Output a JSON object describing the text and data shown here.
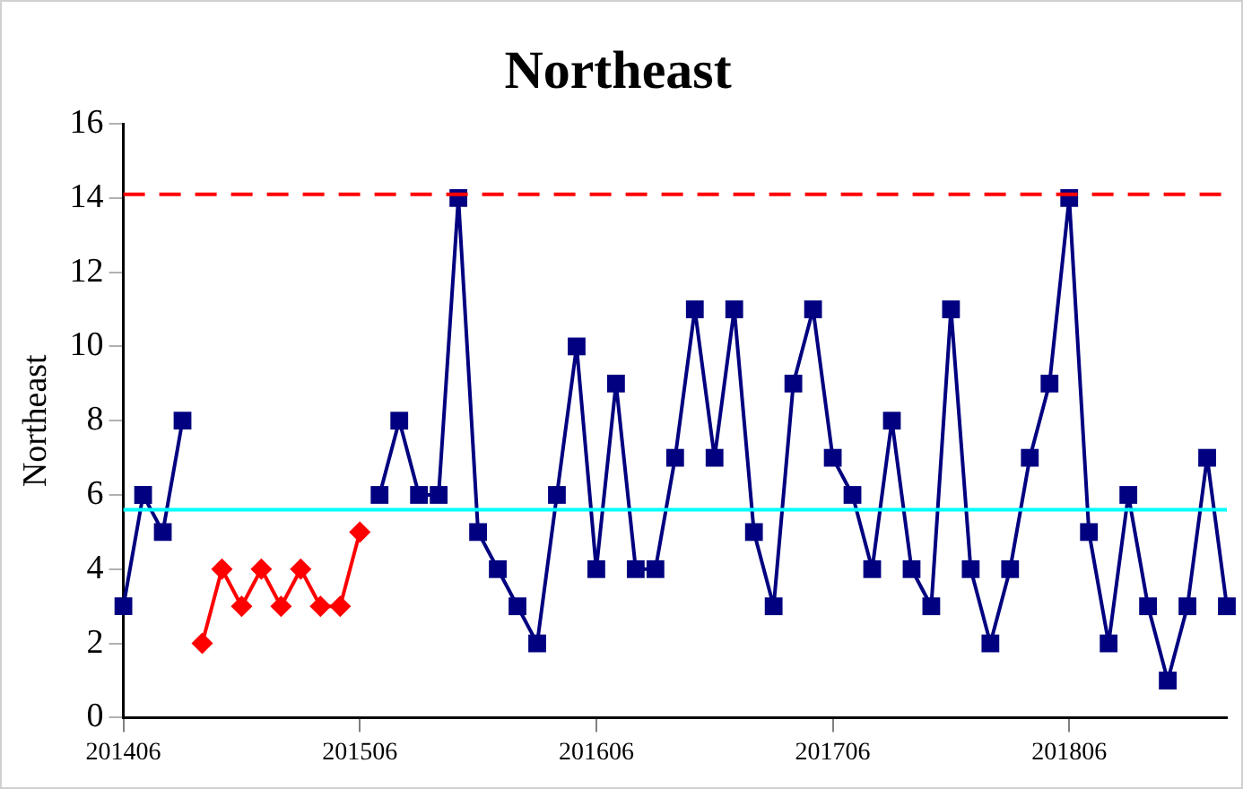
{
  "chart_data": {
    "type": "line",
    "title": "Northeast",
    "ylabel": "Northeast",
    "categories": [
      "201406",
      null,
      null,
      null,
      null,
      null,
      null,
      null,
      null,
      null,
      null,
      null,
      "201506",
      null,
      null,
      null,
      null,
      null,
      null,
      null,
      null,
      null,
      null,
      null,
      "201606",
      null,
      null,
      null,
      null,
      null,
      null,
      null,
      null,
      null,
      null,
      null,
      "201706",
      null,
      null,
      null,
      null,
      null,
      null,
      null,
      null,
      null,
      null,
      null,
      "201806",
      null,
      null,
      null,
      null,
      null,
      null,
      null,
      null
    ],
    "series": [
      {
        "color": "#000080",
        "marker": "square",
        "values": [
          3,
          6,
          5,
          8,
          null,
          null,
          null,
          null,
          null,
          null,
          null,
          null,
          null,
          6,
          8,
          6,
          6,
          14,
          5,
          4,
          3,
          2,
          6,
          10,
          4,
          9,
          4,
          4,
          7,
          11,
          7,
          11,
          5,
          3,
          9,
          11,
          7,
          6,
          4,
          8,
          4,
          3,
          11,
          4,
          2,
          4,
          7,
          9,
          14,
          5,
          2,
          6,
          3,
          1,
          3,
          7,
          3
        ]
      },
      {
        "color": "#ff0000",
        "marker": "diamond",
        "values": [
          null,
          null,
          null,
          null,
          2,
          4,
          3,
          4,
          3,
          4,
          3,
          3,
          5,
          null,
          null,
          null,
          null,
          null,
          null,
          null,
          null,
          null,
          null,
          null,
          null,
          null,
          null,
          null,
          null,
          null,
          null,
          null,
          null,
          null,
          null,
          null,
          null,
          null,
          null,
          null,
          null,
          null,
          null,
          null,
          null,
          null,
          null,
          null,
          null,
          null,
          null,
          null,
          null,
          null,
          null,
          null,
          null
        ]
      }
    ],
    "ylim": [
      0,
      16
    ],
    "yticks": [
      0,
      2,
      4,
      6,
      8,
      10,
      12,
      14,
      16
    ],
    "grid": false,
    "legend": false,
    "ref_lines": [
      {
        "axis": "y",
        "value": 14.1,
        "color": "#ff0000",
        "line_style": "dashed"
      },
      {
        "axis": "y",
        "value": 5.6,
        "color": "#00ffff",
        "line_style": "solid"
      }
    ]
  }
}
